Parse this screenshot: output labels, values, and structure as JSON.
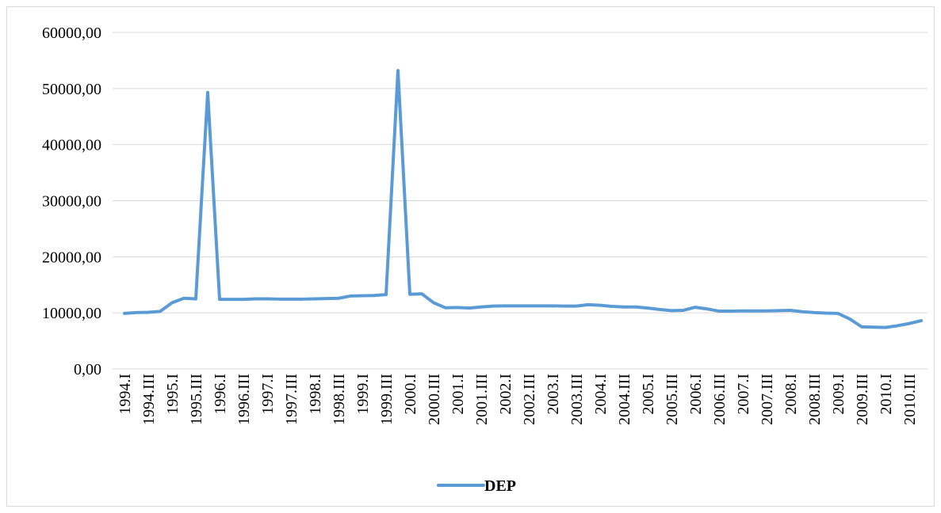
{
  "chart_data": {
    "type": "line",
    "categories": [
      "1994.I",
      null,
      "1994.III",
      null,
      "1995.I",
      null,
      "1995.III",
      null,
      "1996.I",
      null,
      "1996.III",
      null,
      "1997.I",
      null,
      "1997.III",
      null,
      "1998.I",
      null,
      "1998.III",
      null,
      "1999.I",
      null,
      "1999.III",
      null,
      "2000.I",
      null,
      "2000.III",
      null,
      "2001.I",
      null,
      "2001.III",
      null,
      "2002.I",
      null,
      "2002.III",
      null,
      "2003.I",
      null,
      "2003.III",
      null,
      "2004.I",
      null,
      "2004.III",
      null,
      "2005.I",
      null,
      "2005.III",
      null,
      "2006.I",
      null,
      "2006.III",
      null,
      "2007.I",
      null,
      "2007.III",
      null,
      "2008.I",
      null,
      "2008.III",
      null,
      "2009.I",
      null,
      "2009.III",
      null,
      "2010.I",
      null,
      "2010.III",
      null
    ],
    "series": [
      {
        "name": "DEP",
        "color": "#5b9bd5",
        "values": [
          9900,
          10050,
          10100,
          10250,
          11800,
          12600,
          12500,
          49300,
          12400,
          12400,
          12400,
          12500,
          12500,
          12450,
          12450,
          12450,
          12500,
          12550,
          12600,
          13000,
          13050,
          13100,
          13250,
          53200,
          13300,
          13400,
          11800,
          10900,
          10950,
          10850,
          11050,
          11200,
          11250,
          11250,
          11250,
          11250,
          11250,
          11200,
          11200,
          11450,
          11350,
          11150,
          11050,
          11050,
          10850,
          10600,
          10400,
          10450,
          11000,
          10700,
          10300,
          10300,
          10350,
          10350,
          10350,
          10400,
          10450,
          10200,
          10050,
          9950,
          9900,
          8900,
          7500,
          7450,
          7400,
          7700,
          8100,
          8600
        ]
      }
    ],
    "ylim": [
      0,
      60000
    ],
    "yticks": [
      {
        "value": 0,
        "label": "0,00"
      },
      {
        "value": 10000,
        "label": "10000,00"
      },
      {
        "value": 20000,
        "label": "20000,00"
      },
      {
        "value": 30000,
        "label": "30000,00"
      },
      {
        "value": 40000,
        "label": "40000,00"
      },
      {
        "value": 50000,
        "label": "50000,00"
      },
      {
        "value": 60000,
        "label": "60000,00"
      }
    ],
    "grid": true,
    "legend": "bottom"
  }
}
